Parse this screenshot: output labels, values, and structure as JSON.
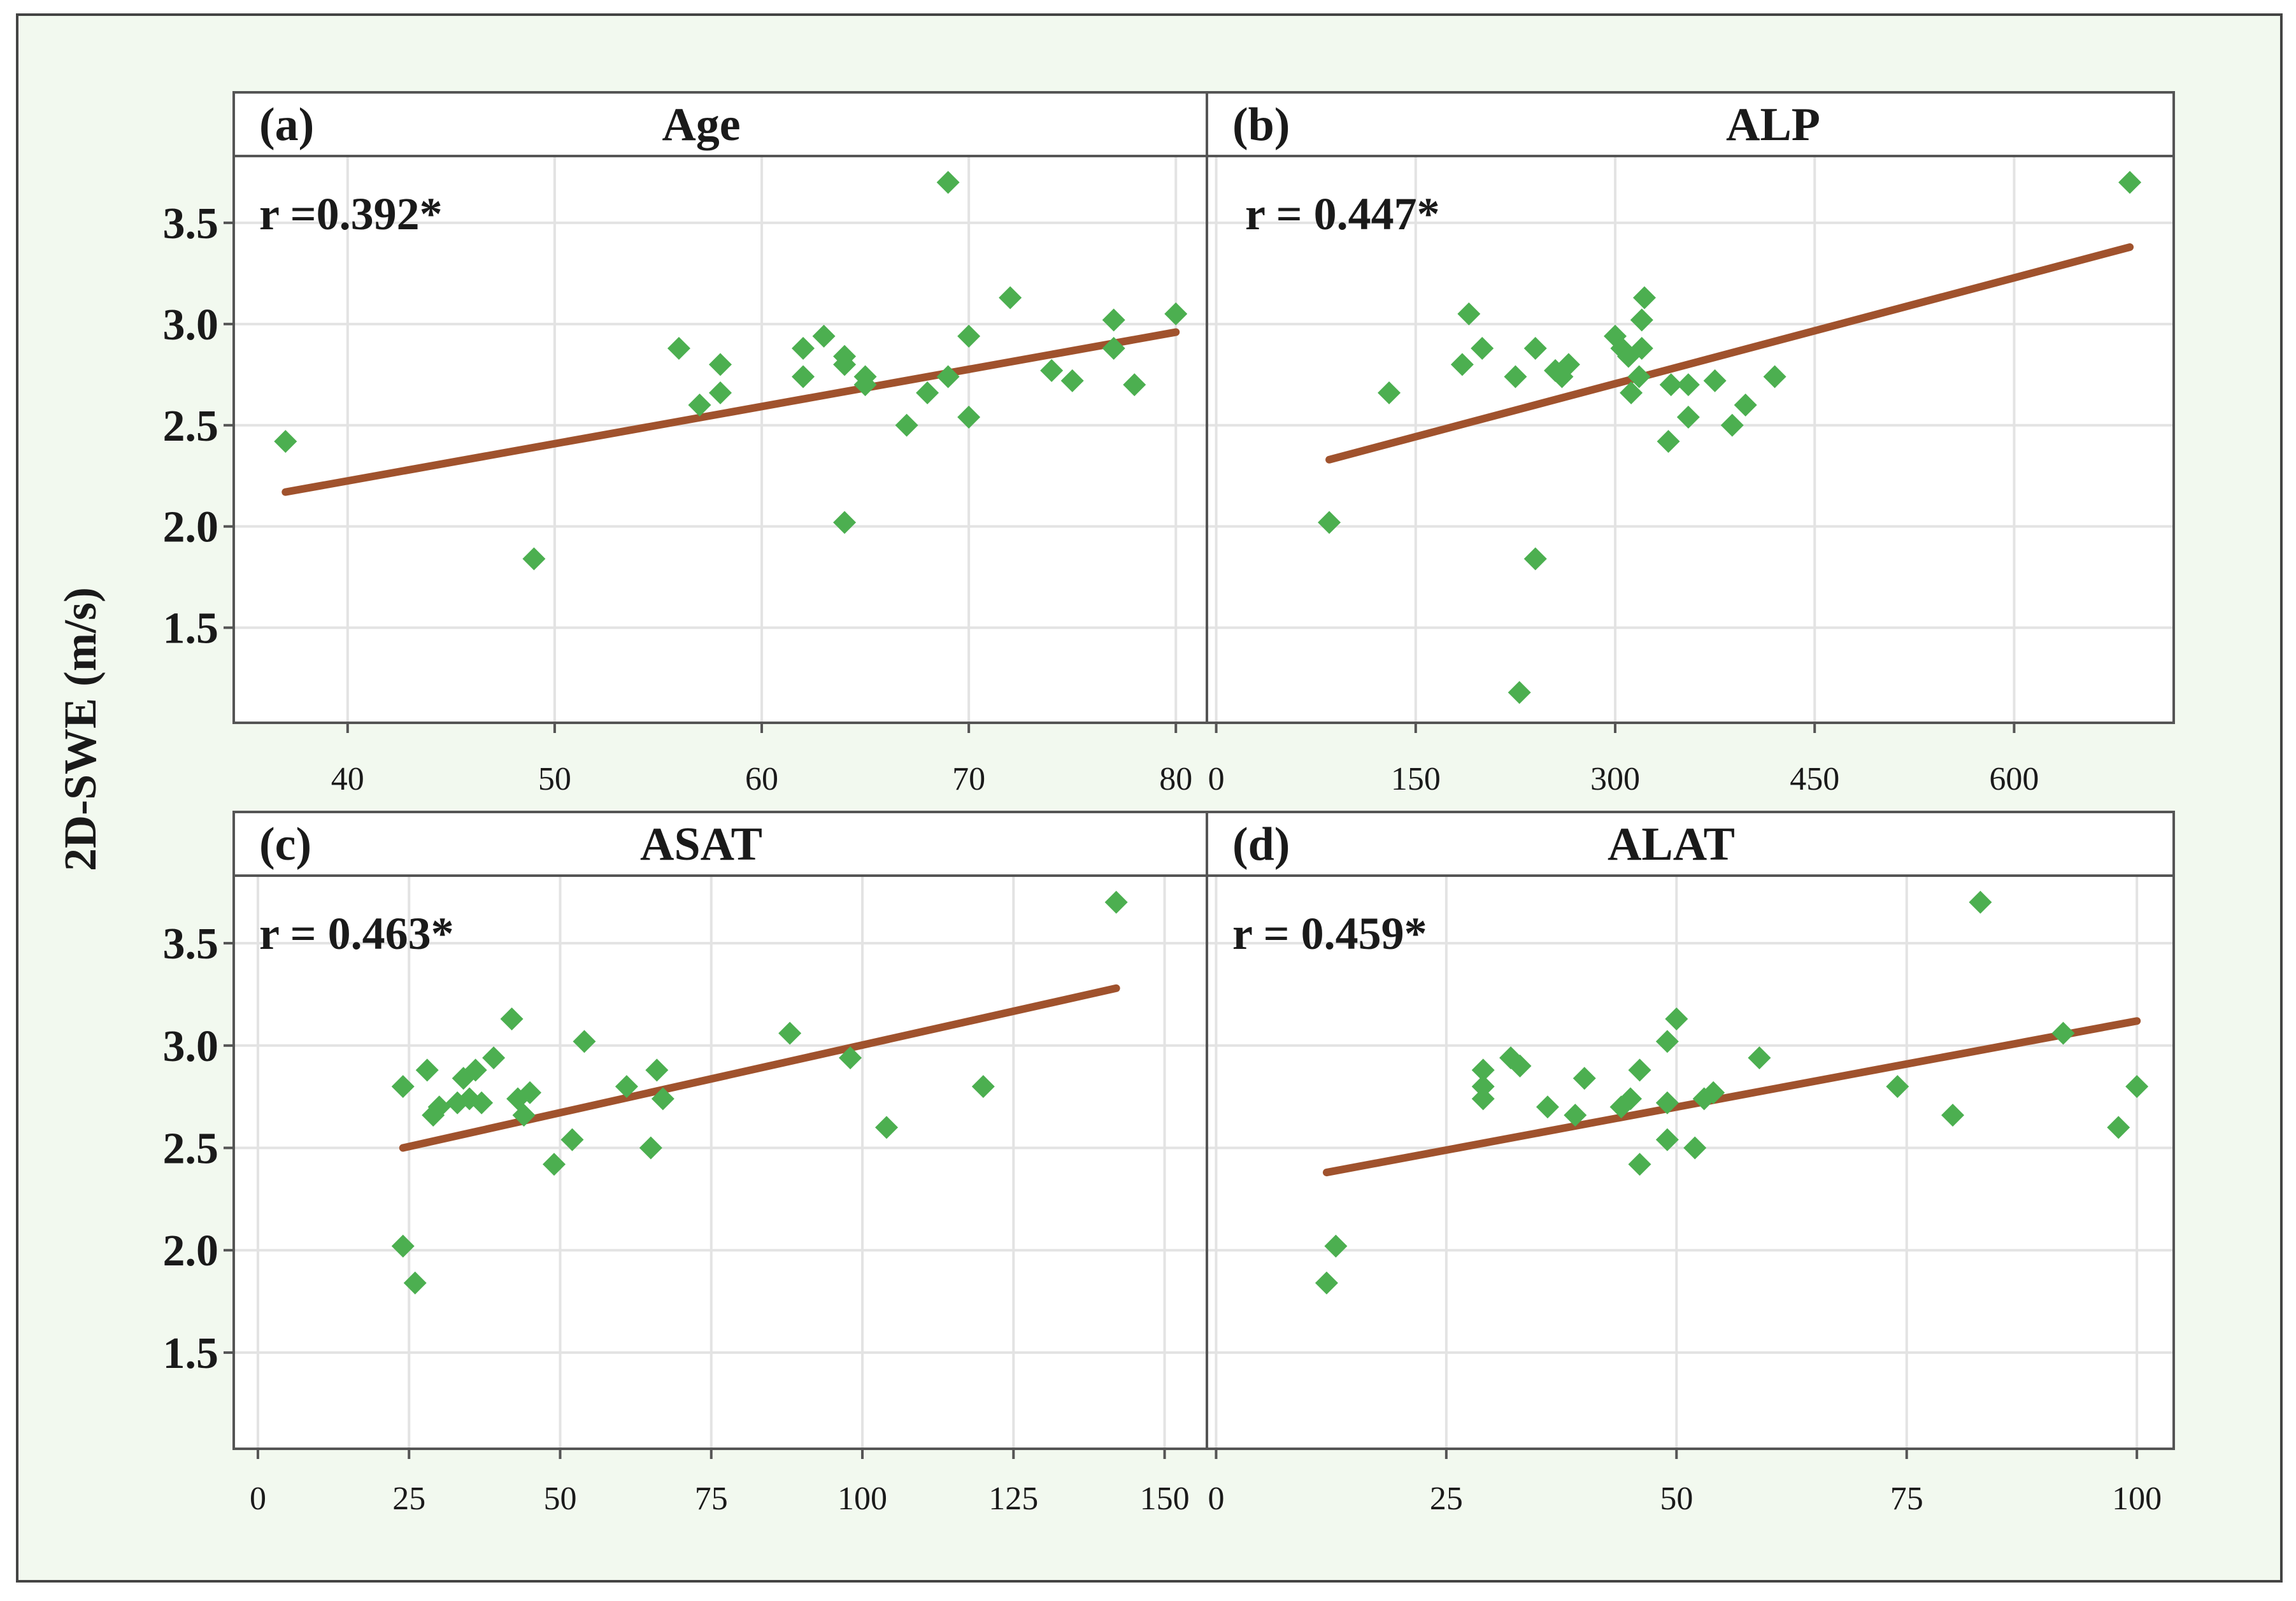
{
  "figure": {
    "ylabel": "2D-SWE (m/s)",
    "colors": {
      "background": "#f2f9ef",
      "panel_border": "#555555",
      "grid": "#e3e3e3",
      "point": "#4caf50",
      "fit_line": "#a0522d",
      "text": "#1a1a1a"
    }
  },
  "chart_data": [
    {
      "type": "scatter",
      "letter": "(a)",
      "title": "Age",
      "r_label": "r =0.392*",
      "xticks": [
        40,
        50,
        60,
        70,
        80
      ],
      "yticks": [
        "3.5",
        "3.0",
        "2.5",
        "2.0",
        "1.5"
      ],
      "xlim": [
        34.5,
        81.5
      ],
      "ylim": [
        1.03,
        3.83
      ],
      "points": [
        [
          37,
          2.42
        ],
        [
          49,
          1.84
        ],
        [
          56,
          2.88
        ],
        [
          57,
          2.6
        ],
        [
          58,
          2.8
        ],
        [
          58,
          2.66
        ],
        [
          62,
          2.88
        ],
        [
          62,
          2.74
        ],
        [
          63,
          2.94
        ],
        [
          64,
          2.84
        ],
        [
          64,
          2.8
        ],
        [
          64,
          2.02
        ],
        [
          65,
          2.74
        ],
        [
          65,
          2.7
        ],
        [
          67,
          2.5
        ],
        [
          68,
          2.66
        ],
        [
          69,
          3.7
        ],
        [
          69,
          2.74
        ],
        [
          70,
          2.94
        ],
        [
          70,
          2.54
        ],
        [
          72,
          3.13
        ],
        [
          74,
          2.77
        ],
        [
          75,
          2.72
        ],
        [
          77,
          3.02
        ],
        [
          77,
          2.88
        ],
        [
          78,
          2.7
        ],
        [
          80,
          3.05
        ]
      ],
      "fit": {
        "x": [
          37,
          80
        ],
        "y": [
          2.17,
          2.96
        ]
      }
    },
    {
      "type": "scatter",
      "letter": "(b)",
      "title": "ALP",
      "r_label": "r = 0.447*",
      "xticks": [
        0,
        150,
        300,
        450,
        600
      ],
      "yticks": [
        "3.5",
        "3.0",
        "2.5",
        "2.0",
        "1.5"
      ],
      "xlim": [
        -7,
        720
      ],
      "ylim": [
        1.03,
        3.83
      ],
      "points": [
        [
          85,
          2.02
        ],
        [
          130,
          2.66
        ],
        [
          185,
          2.8
        ],
        [
          190,
          3.05
        ],
        [
          200,
          2.88
        ],
        [
          225,
          2.74
        ],
        [
          228,
          1.18
        ],
        [
          240,
          2.88
        ],
        [
          240,
          1.84
        ],
        [
          255,
          2.77
        ],
        [
          260,
          2.74
        ],
        [
          265,
          2.8
        ],
        [
          300,
          2.94
        ],
        [
          305,
          2.88
        ],
        [
          310,
          2.84
        ],
        [
          312,
          2.66
        ],
        [
          318,
          2.74
        ],
        [
          320,
          2.88
        ],
        [
          320,
          3.02
        ],
        [
          322,
          3.13
        ],
        [
          340,
          2.42
        ],
        [
          342,
          2.7
        ],
        [
          355,
          2.7
        ],
        [
          355,
          2.54
        ],
        [
          375,
          2.72
        ],
        [
          388,
          2.5
        ],
        [
          398,
          2.6
        ],
        [
          420,
          2.74
        ],
        [
          687,
          3.7
        ]
      ],
      "fit": {
        "x": [
          85,
          687
        ],
        "y": [
          2.33,
          3.38
        ]
      }
    },
    {
      "type": "scatter",
      "letter": "(c)",
      "title": "ASAT",
      "r_label": "r = 0.463*",
      "xticks": [
        0,
        25,
        50,
        75,
        100,
        125,
        150
      ],
      "yticks": [
        "3.5",
        "3.0",
        "2.5",
        "2.0",
        "1.5"
      ],
      "xlim": [
        -4,
        157
      ],
      "ylim": [
        1.03,
        3.83
      ],
      "points": [
        [
          24,
          2.02
        ],
        [
          24,
          2.8
        ],
        [
          26,
          1.84
        ],
        [
          28,
          2.88
        ],
        [
          29,
          2.66
        ],
        [
          30,
          2.7
        ],
        [
          33,
          2.72
        ],
        [
          34,
          2.84
        ],
        [
          35,
          2.74
        ],
        [
          36,
          2.88
        ],
        [
          37,
          2.72
        ],
        [
          39,
          2.94
        ],
        [
          42,
          3.13
        ],
        [
          43,
          2.74
        ],
        [
          44,
          2.66
        ],
        [
          45,
          2.77
        ],
        [
          49,
          2.42
        ],
        [
          52,
          2.54
        ],
        [
          54,
          3.02
        ],
        [
          61,
          2.8
        ],
        [
          65,
          2.5
        ],
        [
          66,
          2.88
        ],
        [
          67,
          2.74
        ],
        [
          88,
          3.06
        ],
        [
          98,
          2.94
        ],
        [
          104,
          2.6
        ],
        [
          120,
          2.8
        ],
        [
          142,
          3.7
        ]
      ],
      "fit": {
        "x": [
          24,
          142
        ],
        "y": [
          2.5,
          3.28
        ]
      }
    },
    {
      "type": "scatter",
      "letter": "(d)",
      "title": "ALAT",
      "r_label": "r = 0.459*",
      "xticks": [
        0,
        25,
        50,
        75,
        100
      ],
      "yticks": [
        "3.5",
        "3.0",
        "2.5",
        "2.0",
        "1.5"
      ],
      "xlim": [
        -1,
        104
      ],
      "ylim": [
        1.03,
        3.83
      ],
      "points": [
        [
          12,
          1.84
        ],
        [
          13,
          2.02
        ],
        [
          29,
          2.88
        ],
        [
          29,
          2.8
        ],
        [
          29,
          2.74
        ],
        [
          32,
          2.94
        ],
        [
          33,
          2.9
        ],
        [
          36,
          2.7
        ],
        [
          39,
          2.66
        ],
        [
          40,
          2.84
        ],
        [
          44,
          2.7
        ],
        [
          45,
          2.74
        ],
        [
          46,
          2.42
        ],
        [
          46,
          2.88
        ],
        [
          49,
          3.02
        ],
        [
          49,
          2.72
        ],
        [
          49,
          2.54
        ],
        [
          50,
          3.13
        ],
        [
          52,
          2.5
        ],
        [
          53,
          2.74
        ],
        [
          54,
          2.77
        ],
        [
          59,
          2.94
        ],
        [
          74,
          2.8
        ],
        [
          80,
          2.66
        ],
        [
          83,
          3.7
        ],
        [
          92,
          3.06
        ],
        [
          98,
          2.6
        ],
        [
          100,
          2.8
        ]
      ],
      "fit": {
        "x": [
          12,
          100
        ],
        "y": [
          2.38,
          3.12
        ]
      }
    }
  ]
}
